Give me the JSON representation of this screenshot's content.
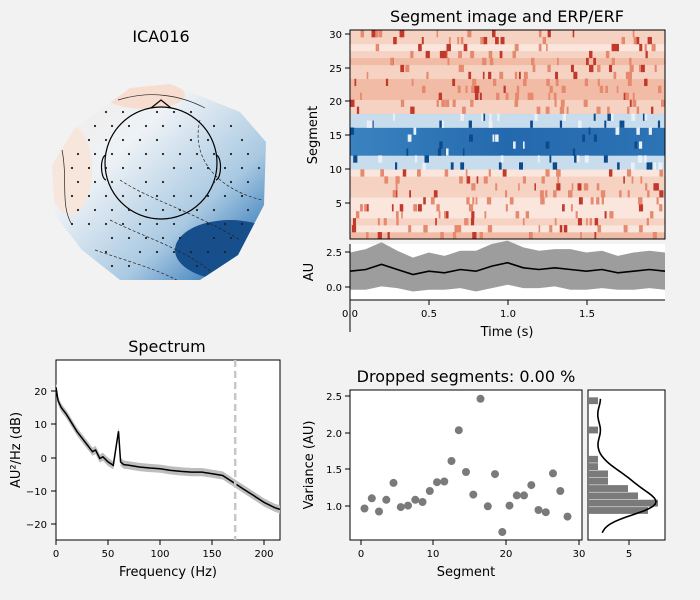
{
  "window": {
    "background": "#f2f2f2"
  },
  "topomap": {
    "title": "ICA016",
    "colors": {
      "negative": "#1f5fa3",
      "positive": "#e5a58c",
      "neutral": "#f4f4f4"
    }
  },
  "segment_image": {
    "title": "Segment image and ERP/ERF",
    "ylabel": "Segment",
    "yticks": [
      "30",
      "25",
      "20",
      "15",
      "10",
      "5"
    ]
  },
  "erp": {
    "ylabel": "AU",
    "yticks": [
      "2.5",
      "0.0"
    ],
    "xlabel": "Time (s)",
    "xticks": [
      "0.0",
      "0.5",
      "1.0",
      "1.5"
    ]
  },
  "spectrum": {
    "title": "Spectrum",
    "xlabel": "Frequency (Hz)",
    "ylabel": "AU²/Hz (dB)",
    "xticks": [
      "0",
      "50",
      "100",
      "150",
      "200"
    ],
    "yticks": [
      "20",
      "10",
      "0",
      "−10",
      "−20"
    ],
    "cutoff_hz": 172
  },
  "dropped": {
    "title": "Dropped segments: 0.00 %",
    "xlabel": "Segment",
    "ylabel": "Variance (AU)",
    "xticks": [
      "0",
      "10",
      "20",
      "30"
    ],
    "yticks": [
      "2.5",
      "2.0",
      "1.5",
      "1.0"
    ],
    "hist_xticks": [
      "5"
    ]
  },
  "chart_data": [
    {
      "type": "heatmap",
      "title": "Segment image and ERP/ERF",
      "ylabel": "Segment",
      "x_range_s": [
        0,
        2.0
      ],
      "ylim": [
        0,
        30
      ],
      "strong_negative_rows": [
        13,
        14,
        15,
        16
      ],
      "weak_negative_rows": [
        11,
        12,
        17,
        18
      ],
      "colormap": "RdBu_r"
    },
    {
      "type": "line",
      "title": "",
      "xlabel": "Time (s)",
      "ylabel": "AU",
      "xlim": [
        0,
        2.0
      ],
      "ylim": [
        -0.6,
        2.7
      ],
      "x": [
        0.0,
        0.1,
        0.2,
        0.3,
        0.4,
        0.5,
        0.6,
        0.7,
        0.8,
        0.9,
        1.0,
        1.1,
        1.2,
        1.3,
        1.4,
        1.5,
        1.6,
        1.7,
        1.8,
        1.9,
        2.0
      ],
      "mean": [
        1.1,
        1.2,
        1.5,
        1.2,
        0.9,
        1.1,
        1.0,
        1.2,
        1.1,
        1.4,
        1.6,
        1.3,
        1.2,
        1.3,
        1.2,
        1.1,
        1.2,
        1.0,
        1.1,
        1.2,
        1.1
      ],
      "band_half_width": [
        1.1,
        1.2,
        1.3,
        1.1,
        1.0,
        1.1,
        1.0,
        1.1,
        1.2,
        1.3,
        1.3,
        1.2,
        1.1,
        1.1,
        1.2,
        1.1,
        1.1,
        1.0,
        1.1,
        1.1,
        1.1
      ]
    },
    {
      "type": "line",
      "title": "Spectrum",
      "xlabel": "Frequency (Hz)",
      "ylabel": "AU²/Hz (dB)",
      "xlim": [
        0,
        215
      ],
      "ylim": [
        -25,
        28
      ],
      "x": [
        0,
        2,
        5,
        10,
        15,
        20,
        25,
        30,
        35,
        38,
        42,
        45,
        50,
        55,
        58,
        60,
        62,
        65,
        70,
        80,
        90,
        100,
        110,
        120,
        130,
        140,
        150,
        160,
        170,
        180,
        190,
        200,
        210,
        215
      ],
      "values": [
        20,
        16,
        14,
        12,
        9.5,
        7,
        5,
        3,
        1,
        1.5,
        -1,
        -0.5,
        -2,
        -3,
        3,
        7,
        -2,
        -2.8,
        -3,
        -3.5,
        -3.8,
        -4,
        -4.5,
        -4.8,
        -5,
        -5,
        -5.5,
        -6,
        -8,
        -10,
        -12,
        -14,
        -15.5,
        -16
      ],
      "band_half_width": 1.2,
      "cutoff_hz": 172
    },
    {
      "type": "scatter",
      "title": "Dropped segments: 0.00 %",
      "xlabel": "Segment",
      "ylabel": "Variance (AU)",
      "xlim": [
        -2,
        30
      ],
      "ylim": [
        0.55,
        2.6
      ],
      "x": [
        0,
        1,
        2,
        3,
        4,
        5,
        6,
        7,
        8,
        9,
        10,
        11,
        12,
        13,
        14,
        15,
        16,
        17,
        18,
        19,
        20,
        21,
        22,
        23,
        24,
        25,
        26,
        27,
        28
      ],
      "y": [
        0.98,
        1.12,
        0.94,
        1.1,
        1.33,
        1.0,
        1.02,
        1.1,
        1.07,
        1.22,
        1.34,
        1.35,
        1.63,
        2.05,
        1.48,
        1.17,
        2.48,
        1.01,
        1.45,
        0.66,
        1.02,
        1.16,
        1.16,
        1.3,
        0.96,
        0.93,
        1.46,
        1.22,
        0.87
      ]
    },
    {
      "type": "bar",
      "title": "",
      "orientation": "horizontal",
      "bins": [
        0.9,
        1.0,
        1.1,
        1.2,
        1.3,
        1.4,
        1.5,
        1.6,
        2.0,
        2.4
      ],
      "counts": [
        6,
        7,
        5,
        4,
        2,
        2,
        1,
        1,
        1,
        1
      ],
      "kde": true
    }
  ]
}
